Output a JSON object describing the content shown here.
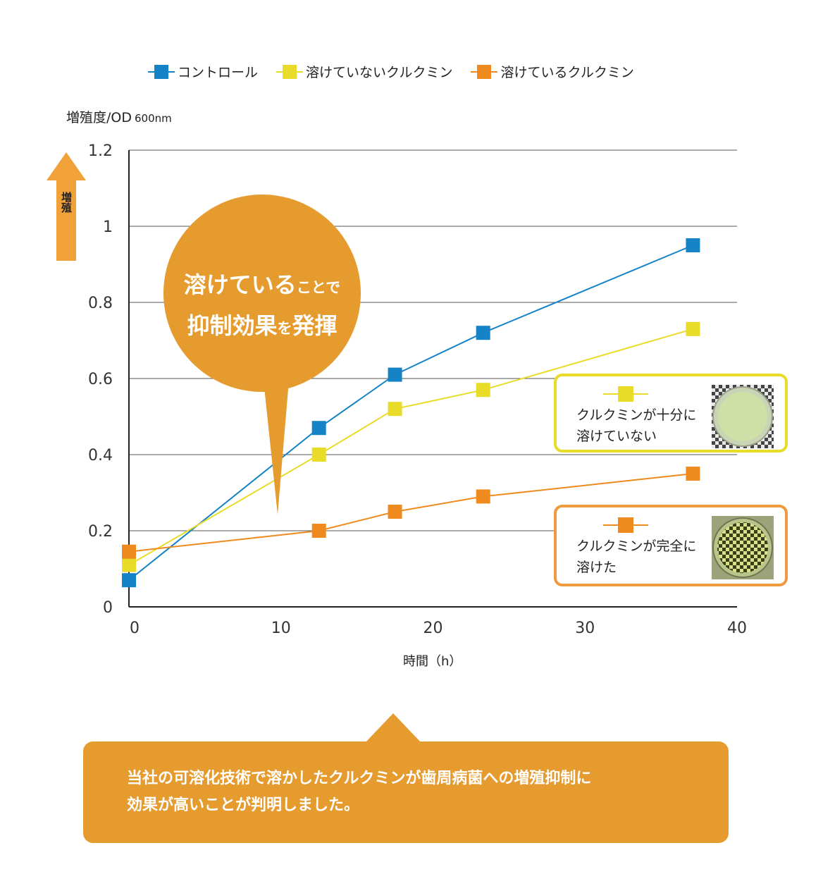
{
  "legend": [
    {
      "label": "コントロール",
      "color": "#1683c7"
    },
    {
      "label": "溶けていないクルクミン",
      "color": "#e8dc29"
    },
    {
      "label": "溶けているクルクミン",
      "color": "#ee8a1e"
    }
  ],
  "ylabel": {
    "main": "増殖度/OD",
    "unit": "600nm"
  },
  "xlabel": "時間（h）",
  "arrow_label": "増殖",
  "bubble": {
    "line1_big": "溶けている",
    "line1_small": "ことで",
    "line2_big1": "抑制効果",
    "line2_small": "を",
    "line2_big2": "発揮"
  },
  "inset_undissolved": {
    "caption_line1": "クルクミンが十分に",
    "caption_line2": "溶けていない",
    "icon": "petri-dish-photo-cloudy"
  },
  "inset_dissolved": {
    "caption_line1": "クルクミンが完全に",
    "caption_line2": "溶けた",
    "icon": "petri-dish-photo-clear"
  },
  "banner": {
    "line1": "当社の可溶化技術で溶かしたクルクミンが歯周病菌への増殖抑制に",
    "line2": "効果が高いことが判明しました。"
  },
  "chart_data": {
    "type": "line",
    "xlabel": "時間（h）",
    "ylabel": "増殖度/OD 600nm",
    "xlim": [
      0,
      40
    ],
    "ylim": [
      0,
      1.2
    ],
    "xticks": [
      "0",
      "10",
      "20",
      "30",
      "40"
    ],
    "yticks": [
      "0",
      "0.2",
      "0.4",
      "0.6",
      "0.8",
      "1",
      "1.2"
    ],
    "grid": "horizontal",
    "legend_position": "top",
    "series": [
      {
        "name": "コントロール",
        "color": "#1683c7",
        "x": [
          0,
          12.5,
          17.5,
          23.3,
          37.1
        ],
        "y": [
          0.07,
          0.47,
          0.61,
          0.72,
          0.95
        ]
      },
      {
        "name": "溶けていないクルクミン",
        "color": "#e8dc29",
        "x": [
          0,
          12.5,
          17.5,
          23.3,
          37.1
        ],
        "y": [
          0.11,
          0.4,
          0.52,
          0.57,
          0.73
        ]
      },
      {
        "name": "溶けているクルクミン",
        "color": "#ee8a1e",
        "x": [
          0,
          12.5,
          17.5,
          23.3,
          37.1
        ],
        "y": [
          0.145,
          0.2,
          0.25,
          0.29,
          0.35
        ]
      }
    ]
  }
}
